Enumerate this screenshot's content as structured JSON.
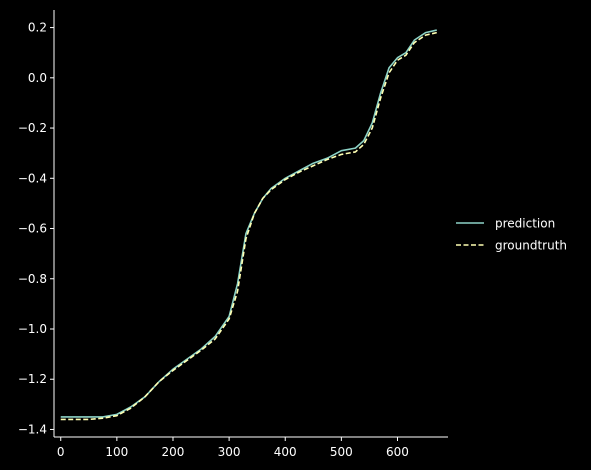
{
  "chart_data": {
    "type": "line",
    "title": "",
    "xlabel": "",
    "ylabel": "",
    "xlim": [
      -12,
      690
    ],
    "ylim": [
      -1.43,
      0.27
    ],
    "xticks": [
      0,
      100,
      200,
      300,
      400,
      500,
      600
    ],
    "yticks": [
      0.2,
      0.0,
      -0.2,
      -0.4,
      -0.6,
      -0.8,
      -1.0,
      -1.2,
      -1.4
    ],
    "ytick_labels": [
      "0.2",
      "0.0",
      "−0.2",
      "−0.4",
      "−0.6",
      "−0.8",
      "−1.0",
      "−1.2",
      "−1.4"
    ],
    "grid": false,
    "legend_position": "right",
    "background": "#000000",
    "axis_color": "#ffffff",
    "series": [
      {
        "name": "prediction",
        "color": "#8dd3c7",
        "style": "solid",
        "x": [
          0,
          25,
          50,
          75,
          100,
          125,
          150,
          175,
          200,
          225,
          250,
          275,
          300,
          315,
          330,
          345,
          360,
          375,
          400,
          425,
          450,
          475,
          500,
          525,
          540,
          555,
          570,
          585,
          600,
          615,
          630,
          650,
          670
        ],
        "y": [
          -1.35,
          -1.35,
          -1.35,
          -1.35,
          -1.34,
          -1.31,
          -1.27,
          -1.21,
          -1.16,
          -1.12,
          -1.08,
          -1.03,
          -0.95,
          -0.82,
          -0.62,
          -0.54,
          -0.48,
          -0.44,
          -0.4,
          -0.37,
          -0.34,
          -0.32,
          -0.29,
          -0.28,
          -0.25,
          -0.18,
          -0.06,
          0.04,
          0.08,
          0.1,
          0.15,
          0.18,
          0.19
        ]
      },
      {
        "name": "groundtruth",
        "color": "#ffffb3",
        "style": "dashed",
        "x": [
          0,
          25,
          50,
          75,
          100,
          125,
          150,
          175,
          200,
          225,
          250,
          275,
          300,
          315,
          330,
          345,
          360,
          375,
          400,
          425,
          450,
          475,
          500,
          525,
          540,
          555,
          570,
          585,
          600,
          615,
          630,
          650,
          670
        ],
        "y": [
          -1.36,
          -1.36,
          -1.36,
          -1.355,
          -1.345,
          -1.315,
          -1.27,
          -1.21,
          -1.165,
          -1.125,
          -1.085,
          -1.04,
          -0.96,
          -0.85,
          -0.64,
          -0.54,
          -0.48,
          -0.445,
          -0.405,
          -0.375,
          -0.35,
          -0.325,
          -0.305,
          -0.295,
          -0.265,
          -0.2,
          -0.08,
          0.02,
          0.07,
          0.09,
          0.14,
          0.17,
          0.18
        ]
      }
    ]
  }
}
